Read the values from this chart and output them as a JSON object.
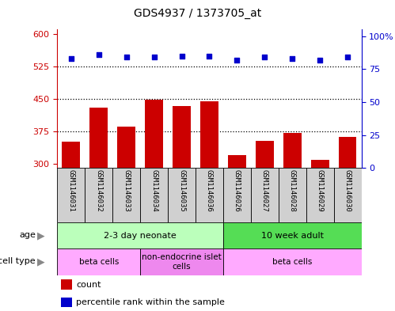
{
  "title": "GDS4937 / 1373705_at",
  "samples": [
    "GSM1146031",
    "GSM1146032",
    "GSM1146033",
    "GSM1146034",
    "GSM1146035",
    "GSM1146036",
    "GSM1146026",
    "GSM1146027",
    "GSM1146028",
    "GSM1146029",
    "GSM1146030"
  ],
  "counts": [
    350,
    430,
    385,
    447,
    433,
    445,
    320,
    352,
    370,
    308,
    362
  ],
  "percentile_ranks": [
    83,
    86,
    84,
    84,
    85,
    85,
    82,
    84,
    83,
    82,
    84
  ],
  "ylim_left": [
    290,
    610
  ],
  "yticks_left": [
    300,
    375,
    450,
    525,
    600
  ],
  "ylim_right": [
    0,
    105
  ],
  "yticks_right": [
    0,
    25,
    50,
    75,
    100
  ],
  "bar_color": "#cc0000",
  "dot_color": "#0000cc",
  "bar_bottom": 290,
  "age_groups": [
    {
      "label": "2-3 day neonate",
      "start": 0,
      "end": 6,
      "color": "#bbffbb"
    },
    {
      "label": "10 week adult",
      "start": 6,
      "end": 11,
      "color": "#55dd55"
    }
  ],
  "cell_types": [
    {
      "label": "beta cells",
      "start": 0,
      "end": 3,
      "color": "#ffaaff"
    },
    {
      "label": "non-endocrine islet\ncells",
      "start": 3,
      "end": 6,
      "color": "#ee88ee"
    },
    {
      "label": "beta cells",
      "start": 6,
      "end": 11,
      "color": "#ffaaff"
    }
  ],
  "legend_items": [
    {
      "color": "#cc0000",
      "label": "count"
    },
    {
      "color": "#0000cc",
      "label": "percentile rank within the sample"
    }
  ],
  "dotted_yticks": [
    375,
    450,
    525
  ],
  "bg_color": "#ffffff",
  "tick_label_color_left": "#cc0000",
  "tick_label_color_right": "#0000cc",
  "xlabel_bg": "#d0d0d0",
  "border_color": "#000000"
}
